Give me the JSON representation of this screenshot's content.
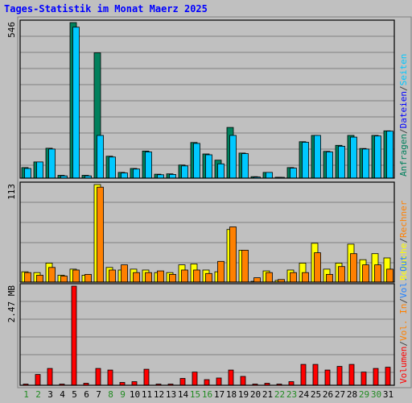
{
  "colors": {
    "background": "#c0c0c0",
    "plot_background": "#c0c0c0",
    "border": "#000000",
    "grid": "#808080",
    "title": "#0000ff",
    "weekday_label": "#000000",
    "weekend_label": "#228b22",
    "anfragen": "#00805c",
    "dateien": "#0000ff",
    "seiten": "#00c8ff",
    "besuche": "#ffff00",
    "rechner": "#ff8000",
    "vol_out": "#2080ff",
    "vol_in": "#ff8000",
    "volumen": "#ff0000",
    "separator": "#404040"
  },
  "chart_data": {
    "title": "Tages-Statistik im Monat Maerz 2025",
    "categories": [
      "1",
      "2",
      "3",
      "4",
      "5",
      "6",
      "7",
      "8",
      "9",
      "10",
      "11",
      "12",
      "13",
      "14",
      "15",
      "16",
      "17",
      "18",
      "19",
      "20",
      "21",
      "22",
      "23",
      "24",
      "25",
      "26",
      "27",
      "28",
      "29",
      "30",
      "31"
    ],
    "weekend_days": [
      1,
      2,
      8,
      9,
      15,
      16,
      22,
      23,
      29,
      30
    ],
    "panels": [
      {
        "type": "bar",
        "ymax": 546,
        "ymax_label": "546",
        "legend": [
          {
            "text": "Anfragen",
            "color_key": "anfragen"
          },
          {
            "text": "/",
            "color_key": "separator"
          },
          {
            "text": "Dateien",
            "color_key": "dateien"
          },
          {
            "text": "/",
            "color_key": "separator"
          },
          {
            "text": "Seiten",
            "color_key": "seiten"
          }
        ],
        "series": [
          {
            "name": "Anfragen",
            "color_key": "anfragen",
            "values": [
              37,
              57,
              105,
              10,
              546,
              10,
              440,
              77,
              20,
              34,
              95,
              14,
              15,
              46,
              125,
              85,
              63,
              178,
              88,
              5,
              20,
              3,
              37,
              128,
              150,
              94,
              115,
              150,
              104,
              150,
              166
            ]
          },
          {
            "name": "Seiten",
            "color_key": "seiten",
            "values": [
              34,
              57,
              102,
              8,
              530,
              8,
              150,
              74,
              18,
              32,
              92,
              12,
              13,
              43,
              122,
              82,
              50,
              150,
              86,
              4,
              20,
              2,
              35,
              126,
              150,
              92,
              112,
              144,
              102,
              148,
              165
            ]
          }
        ]
      },
      {
        "type": "bar",
        "ymax": 113,
        "ymax_label": "113",
        "legend": [
          {
            "text": "Besuche",
            "color_key": "besuche"
          },
          {
            "text": "/",
            "color_key": "separator"
          },
          {
            "text": "Rechner",
            "color_key": "rechner"
          }
        ],
        "series": [
          {
            "name": "Besuche",
            "color_key": "besuche",
            "values": [
              12,
              11,
              22,
              8,
              15,
              8,
              113,
              17,
              14,
              15,
              14,
              11,
              11,
              20,
              21,
              14,
              12,
              61,
              37,
              0,
              13,
              2,
              14,
              22,
              45,
              15,
              22,
              44,
              26,
              33,
              28
            ]
          },
          {
            "name": "Rechner",
            "color_key": "rechner",
            "values": [
              11,
              8,
              17,
              7,
              14,
              9,
              110,
              14,
              20,
              11,
              11,
              13,
              9,
              14,
              14,
              10,
              24,
              64,
              37,
              5,
              11,
              3,
              11,
              11,
              34,
              9,
              18,
              33,
              20,
              20,
              15
            ]
          }
        ]
      },
      {
        "type": "bar",
        "ymax": 2.47,
        "ymax_label": "2.47 MB",
        "legend": [
          {
            "text": "Volumen",
            "color_key": "volumen"
          },
          {
            "text": "/",
            "color_key": "separator"
          },
          {
            "text": "Vol. In",
            "color_key": "vol_in"
          },
          {
            "text": "/",
            "color_key": "separator"
          },
          {
            "text": "Vol. Out",
            "color_key": "vol_out"
          }
        ],
        "series": [
          {
            "name": "Volumen",
            "color_key": "volumen",
            "values": [
              0.03,
              0.27,
              0.42,
              0.03,
              2.47,
              0.05,
              0.42,
              0.38,
              0.07,
              0.09,
              0.4,
              0.03,
              0.03,
              0.17,
              0.33,
              0.14,
              0.18,
              0.38,
              0.22,
              0.03,
              0.05,
              0.03,
              0.09,
              0.52,
              0.52,
              0.38,
              0.47,
              0.52,
              0.33,
              0.42,
              0.45
            ]
          }
        ]
      }
    ]
  }
}
